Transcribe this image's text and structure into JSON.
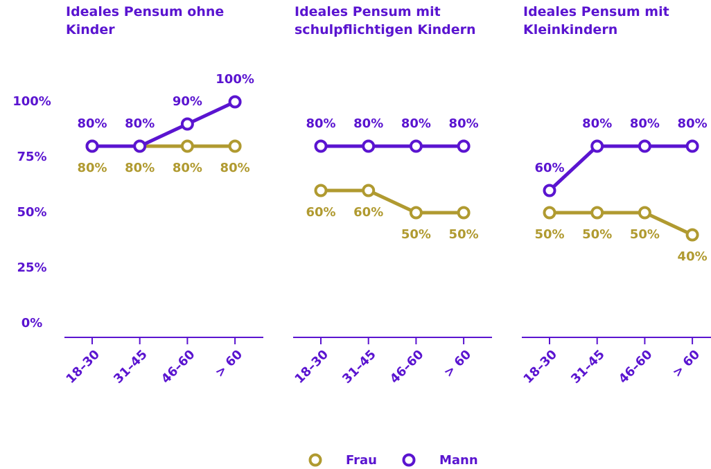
{
  "chart_data": [
    {
      "type": "line",
      "title": "Ideales Pensum ohne Kinder",
      "categories": [
        "18–30",
        "31–45",
        "46–60",
        "> 60"
      ],
      "series": [
        {
          "name": "Frau",
          "color": "#b09a30",
          "values": [
            80,
            80,
            80,
            80
          ],
          "value_labels": [
            "80%",
            "80%",
            "80%",
            "80%"
          ]
        },
        {
          "name": "Mann",
          "color": "#5a14d0",
          "values": [
            80,
            80,
            90,
            100
          ],
          "value_labels": [
            "80%",
            "80%",
            "90%",
            "100%"
          ]
        }
      ],
      "ylim": [
        0,
        100
      ],
      "yticks": [
        {
          "value": 0,
          "label": "0%"
        },
        {
          "value": 25,
          "label": "25%"
        },
        {
          "value": 50,
          "label": "50%"
        },
        {
          "value": 75,
          "label": "75%"
        },
        {
          "value": 100,
          "label": "100%"
        }
      ]
    },
    {
      "type": "line",
      "title": "Ideales Pensum mit schulpflichtigen Kindern",
      "categories": [
        "18–30",
        "31–45",
        "46–60",
        "> 60"
      ],
      "series": [
        {
          "name": "Frau",
          "color": "#b09a30",
          "values": [
            60,
            60,
            50,
            50
          ],
          "value_labels": [
            "60%",
            "60%",
            "50%",
            "50%"
          ]
        },
        {
          "name": "Mann",
          "color": "#5a14d0",
          "values": [
            80,
            80,
            80,
            80
          ],
          "value_labels": [
            "80%",
            "80%",
            "80%",
            "80%"
          ]
        }
      ],
      "ylim": [
        0,
        100
      ]
    },
    {
      "type": "line",
      "title": "Ideales Pensum mit Kleinkindern",
      "categories": [
        "18–30",
        "31–45",
        "46–60",
        "> 60"
      ],
      "series": [
        {
          "name": "Frau",
          "color": "#b09a30",
          "values": [
            50,
            50,
            50,
            40
          ],
          "value_labels": [
            "50%",
            "50%",
            "50%",
            "40%"
          ]
        },
        {
          "name": "Mann",
          "color": "#5a14d0",
          "values": [
            60,
            80,
            80,
            80
          ],
          "value_labels": [
            "60%",
            "80%",
            "80%",
            "80%"
          ]
        }
      ],
      "ylim": [
        0,
        100
      ]
    }
  ]
}
